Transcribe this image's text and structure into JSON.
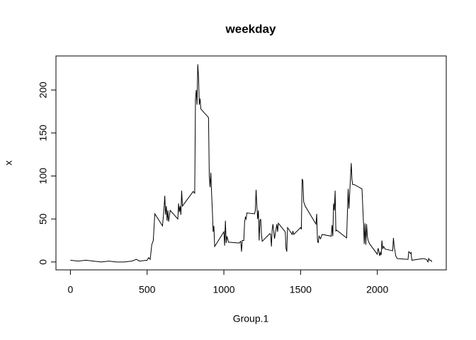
{
  "chart_data": {
    "type": "line",
    "title": "weekday",
    "x_label": "Group.1",
    "y_label": "x",
    "x": [
      0,
      50,
      100,
      150,
      200,
      250,
      300,
      350,
      400,
      430,
      450,
      500,
      510,
      520,
      530,
      540,
      550,
      600,
      610,
      615,
      620,
      625,
      630,
      635,
      640,
      650,
      700,
      705,
      710,
      715,
      720,
      725,
      730,
      800,
      810,
      815,
      820,
      825,
      830,
      835,
      840,
      845,
      850,
      900,
      905,
      910,
      915,
      920,
      925,
      930,
      935,
      940,
      1000,
      1005,
      1010,
      1015,
      1020,
      1030,
      1100,
      1110,
      1115,
      1120,
      1130,
      1135,
      1140,
      1145,
      1150,
      1200,
      1205,
      1210,
      1215,
      1220,
      1225,
      1230,
      1235,
      1240,
      1245,
      1250,
      1300,
      1305,
      1310,
      1315,
      1320,
      1330,
      1335,
      1345,
      1350,
      1355,
      1400,
      1405,
      1410,
      1415,
      1445,
      1450,
      1455,
      1500,
      1505,
      1510,
      1515,
      1520,
      1530,
      1600,
      1605,
      1610,
      1615,
      1620,
      1630,
      1640,
      1700,
      1705,
      1710,
      1715,
      1720,
      1725,
      1730,
      1735,
      1800,
      1810,
      1815,
      1820,
      1830,
      1835,
      1840,
      1850,
      1900,
      1910,
      1915,
      1920,
      1925,
      1930,
      1935,
      1940,
      1950,
      2000,
      2005,
      2010,
      2015,
      2020,
      2025,
      2030,
      2035,
      2040,
      2045,
      2050,
      2100,
      2105,
      2110,
      2115,
      2120,
      2130,
      2200,
      2205,
      2215,
      2220,
      2225,
      2300,
      2320,
      2330,
      2335,
      2340,
      2350,
      2355
    ],
    "values": [
      2,
      1,
      2,
      1,
      0,
      1,
      0,
      0,
      1,
      3,
      1,
      2,
      5,
      3,
      20,
      25,
      56,
      42,
      62,
      77,
      55,
      65,
      48,
      60,
      47,
      60,
      50,
      68,
      58,
      65,
      55,
      83,
      65,
      82,
      80,
      190,
      200,
      183,
      230,
      215,
      183,
      190,
      178,
      168,
      100,
      87,
      104,
      80,
      60,
      35,
      42,
      18,
      35,
      19,
      48,
      22,
      30,
      23,
      22,
      24,
      12,
      25,
      25,
      46,
      52,
      50,
      57,
      56,
      60,
      84,
      65,
      50,
      60,
      25,
      48,
      50,
      32,
      24,
      33,
      32,
      18,
      38,
      44,
      27,
      33,
      44,
      35,
      45,
      35,
      16,
      12,
      40,
      32,
      36,
      32,
      40,
      38,
      96,
      95,
      70,
      65,
      44,
      56,
      25,
      22,
      30,
      27,
      32,
      30,
      43,
      30,
      68,
      60,
      83,
      36,
      37,
      28,
      85,
      62,
      80,
      115,
      95,
      90,
      90,
      85,
      45,
      21,
      45,
      20,
      44,
      30,
      25,
      21,
      9,
      16,
      13,
      7,
      11,
      8,
      25,
      15,
      18,
      17,
      15,
      13,
      28,
      18,
      13,
      7,
      4,
      3,
      12,
      10,
      11,
      2,
      4,
      3,
      0,
      4,
      2,
      2,
      0
    ],
    "color": "#000000",
    "xlim": [
      -94.2,
      2449.2
    ],
    "xticks": [
      0,
      500,
      1000,
      1500,
      2000
    ],
    "ylim": [
      -9.2,
      239.6
    ],
    "yticks": [
      0,
      50,
      100,
      150,
      200
    ]
  }
}
